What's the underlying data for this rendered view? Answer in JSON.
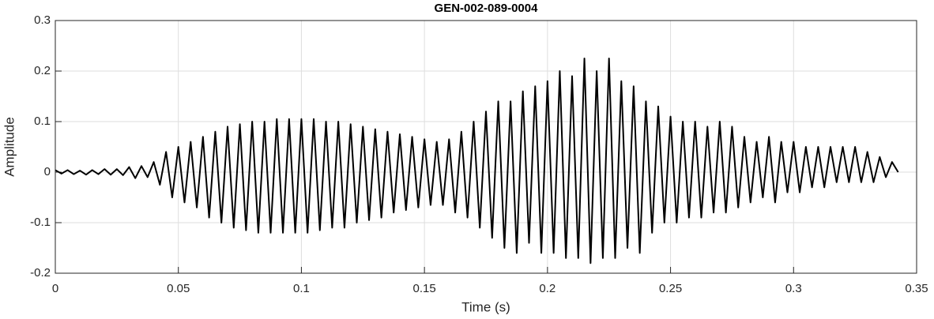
{
  "chart_data": {
    "type": "line",
    "title": "GEN-002-089-0004",
    "x_label": "Time (s)",
    "y_label": "Amplitude",
    "color": "#000000",
    "grid": true,
    "xlim": [
      0,
      0.35
    ],
    "xticks": [
      0,
      0.05,
      0.1,
      0.15,
      0.2,
      0.25,
      0.3,
      0.35
    ],
    "ylim": [
      -0.2,
      0.3
    ],
    "yticks": [
      -0.2,
      -0.1,
      0,
      0.1,
      0.2,
      0.3
    ],
    "x": [
      0,
      0.0025,
      0.005,
      0.0075,
      0.01,
      0.0125,
      0.015,
      0.0175,
      0.02,
      0.0225,
      0.025,
      0.0275,
      0.03,
      0.0325,
      0.035,
      0.0375,
      0.04,
      0.0425,
      0.045,
      0.0475,
      0.05,
      0.0525,
      0.055,
      0.0575,
      0.06,
      0.0625,
      0.065,
      0.0675,
      0.07,
      0.0725,
      0.075,
      0.0775,
      0.08,
      0.0825,
      0.085,
      0.0875,
      0.09,
      0.0925,
      0.095,
      0.0975,
      0.1,
      0.1025,
      0.105,
      0.1075,
      0.11,
      0.1125,
      0.115,
      0.1175,
      0.12,
      0.1225,
      0.125,
      0.1275,
      0.13,
      0.1325,
      0.135,
      0.1375,
      0.14,
      0.1425,
      0.145,
      0.1475,
      0.15,
      0.1525,
      0.155,
      0.1575,
      0.16,
      0.1625,
      0.165,
      0.1675,
      0.17,
      0.1725,
      0.175,
      0.1775,
      0.18,
      0.1825,
      0.185,
      0.1875,
      0.19,
      0.1925,
      0.195,
      0.1975,
      0.2,
      0.2025,
      0.205,
      0.2075,
      0.21,
      0.2125,
      0.215,
      0.2175,
      0.22,
      0.2225,
      0.225,
      0.2275,
      0.23,
      0.2325,
      0.235,
      0.2375,
      0.24,
      0.2425,
      0.245,
      0.2475,
      0.25,
      0.2525,
      0.255,
      0.2575,
      0.26,
      0.2625,
      0.265,
      0.2675,
      0.27,
      0.2725,
      0.275,
      0.2775,
      0.28,
      0.2825,
      0.285,
      0.2875,
      0.29,
      0.2925,
      0.295,
      0.2975,
      0.3,
      0.3025,
      0.305,
      0.3075,
      0.31,
      0.3125,
      0.315,
      0.3175,
      0.32,
      0.3225,
      0.325,
      0.3275,
      0.33,
      0.3325,
      0.335,
      0.3375,
      0.34,
      0.3425
    ],
    "values": [
      0.004,
      -0.003,
      0.004,
      -0.004,
      0.003,
      -0.005,
      0.004,
      -0.004,
      0.006,
      -0.005,
      0.006,
      -0.006,
      0.01,
      -0.012,
      0.012,
      -0.01,
      0.02,
      -0.025,
      0.04,
      -0.05,
      0.05,
      -0.06,
      0.06,
      -0.07,
      0.07,
      -0.09,
      0.08,
      -0.1,
      0.09,
      -0.11,
      0.095,
      -0.115,
      0.1,
      -0.12,
      0.1,
      -0.12,
      0.105,
      -0.12,
      0.105,
      -0.12,
      0.105,
      -0.12,
      0.105,
      -0.115,
      0.1,
      -0.11,
      0.1,
      -0.11,
      0.095,
      -0.1,
      0.09,
      -0.095,
      0.085,
      -0.09,
      0.08,
      -0.08,
      0.075,
      -0.075,
      0.07,
      -0.07,
      0.065,
      -0.065,
      0.06,
      -0.065,
      0.065,
      -0.08,
      0.08,
      -0.09,
      0.1,
      -0.11,
      0.12,
      -0.13,
      0.14,
      -0.15,
      0.14,
      -0.16,
      0.16,
      -0.14,
      0.17,
      -0.16,
      0.18,
      -0.16,
      0.2,
      -0.17,
      0.19,
      -0.17,
      0.225,
      -0.18,
      0.2,
      -0.17,
      0.225,
      -0.17,
      0.18,
      -0.15,
      0.17,
      -0.16,
      0.14,
      -0.12,
      0.13,
      -0.1,
      0.11,
      -0.1,
      0.1,
      -0.09,
      0.1,
      -0.09,
      0.09,
      -0.08,
      0.1,
      -0.08,
      0.09,
      -0.07,
      0.07,
      -0.06,
      0.06,
      -0.05,
      0.07,
      -0.06,
      0.06,
      -0.04,
      0.06,
      -0.04,
      0.05,
      -0.03,
      0.05,
      -0.03,
      0.05,
      -0.02,
      0.05,
      -0.02,
      0.05,
      -0.02,
      0.04,
      -0.02,
      0.03,
      -0.01,
      0.02,
      0
    ]
  }
}
